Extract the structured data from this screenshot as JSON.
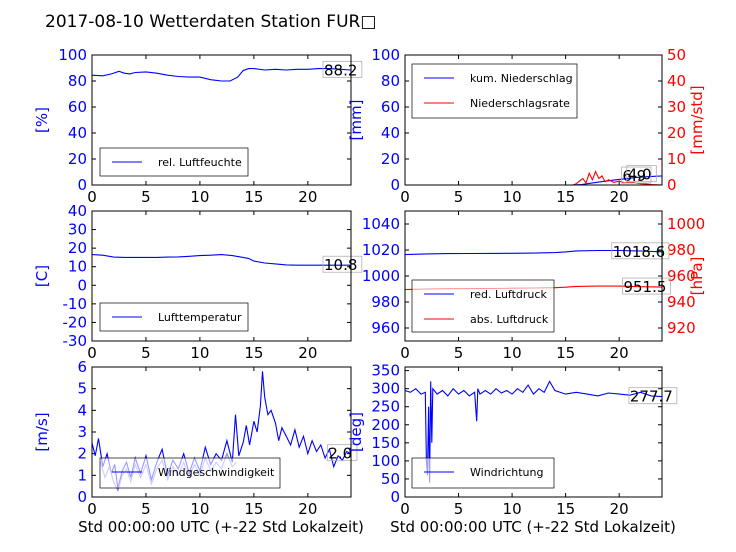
{
  "figure": {
    "title": "2017-08-10 Wetterdaten Station FUR□",
    "xlabel": "Std 00:00:00 UTC (+-22 Std Lokalzeit)"
  },
  "colors": {
    "blue": "#0000ff",
    "red": "#ff0000",
    "black": "#000000"
  },
  "chart_data": [
    {
      "id": "humidity",
      "type": "line",
      "x_ticks": [
        0,
        5,
        10,
        15,
        20
      ],
      "xlim": [
        0,
        24
      ],
      "ylabel": "[%]",
      "ylim": [
        0,
        100
      ],
      "y_ticks": [
        0,
        20,
        40,
        60,
        80,
        100
      ],
      "legend": {
        "placement": "lower-left",
        "entries": [
          "rel. Luftfeuchte"
        ]
      },
      "annotations": [
        {
          "text": "88.2",
          "x": 21.5,
          "y": 88.2
        }
      ],
      "series": [
        {
          "name": "rel. Luftfeuchte",
          "color": "#0000ff",
          "axis": "left",
          "x": [
            0,
            1,
            1.8,
            2.5,
            3,
            3.5,
            4,
            5,
            6,
            7,
            8,
            9,
            10,
            11,
            12,
            12.8,
            13.5,
            14,
            14.5,
            15,
            16,
            17,
            18,
            19,
            20,
            21,
            22,
            23,
            24
          ],
          "y": [
            84.5,
            84,
            85.5,
            87.5,
            86,
            85.5,
            86.5,
            87,
            86,
            84.5,
            83.5,
            83,
            83,
            81,
            80,
            80,
            83,
            88,
            89.5,
            89.5,
            88.5,
            89,
            88.5,
            89,
            89,
            89.5,
            89.5,
            89,
            88.5
          ]
        }
      ]
    },
    {
      "id": "precipitation",
      "type": "line",
      "x_ticks": [
        0,
        5,
        10,
        15,
        20
      ],
      "xlim": [
        0,
        24
      ],
      "ylabel": "[mm]",
      "ylim": [
        0,
        100
      ],
      "y_ticks": [
        0,
        20,
        40,
        60,
        80,
        100
      ],
      "y2label": "[mm/std]",
      "y2lim": [
        0,
        50
      ],
      "y2_ticks": [
        0,
        10,
        20,
        30,
        40,
        50
      ],
      "legend": {
        "placement": "upper-left",
        "entries": [
          "kum. Niederschlag",
          "Niederschlagsrate"
        ]
      },
      "annotations": [
        {
          "text": "6.9",
          "x": 20.3,
          "y": 6.9
        },
        {
          "text": "4.0",
          "x": 20.8,
          "y": 8.0
        }
      ],
      "series": [
        {
          "name": "kum. Niederschlag",
          "color": "#0000ff",
          "axis": "left",
          "x": [
            0,
            15.5,
            16.5,
            17.5,
            18.5,
            19.5,
            20.5,
            21.5,
            22.5,
            23.5,
            24
          ],
          "y": [
            0,
            0,
            0.4,
            1.6,
            2.8,
            3.8,
            4.8,
            5.7,
            6.3,
            6.8,
            6.9
          ]
        },
        {
          "name": "Niederschlagsrate",
          "color": "#ff0000",
          "axis": "right",
          "x": [
            0,
            15.7,
            16.0,
            16.3,
            16.6,
            16.9,
            17.2,
            17.5,
            17.8,
            18.1,
            18.4,
            18.7,
            19.0,
            19.5,
            20.0,
            20.5,
            21.0,
            21.5,
            22,
            22.5,
            23,
            24
          ],
          "y": [
            0,
            0,
            0.5,
            1.5,
            2.5,
            0.8,
            4.5,
            2.0,
            5.2,
            2.5,
            3.5,
            1.2,
            2.0,
            1.0,
            1.5,
            0.8,
            1.2,
            0.8,
            0.5,
            0.4,
            0.2,
            0
          ]
        }
      ]
    },
    {
      "id": "temperature",
      "type": "line",
      "x_ticks": [
        0,
        5,
        10,
        15,
        20
      ],
      "xlim": [
        0,
        24
      ],
      "ylabel": "[C]",
      "ylim": [
        -30,
        40
      ],
      "y_ticks": [
        -30,
        -20,
        -10,
        0,
        10,
        20,
        30,
        40
      ],
      "legend": {
        "placement": "lower-left",
        "entries": [
          "Lufttemperatur"
        ]
      },
      "annotations": [
        {
          "text": "10.8",
          "x": 21.5,
          "y": 10.8
        }
      ],
      "series": [
        {
          "name": "Lufttemperatur",
          "color": "#0000ff",
          "axis": "left",
          "x": [
            0,
            1,
            2,
            3,
            4,
            5,
            6,
            7,
            8,
            9,
            10,
            11,
            12,
            13,
            14,
            14.5,
            15,
            16,
            17,
            18,
            19,
            20,
            21,
            22,
            23,
            24
          ],
          "y": [
            16.5,
            16.2,
            15.2,
            15,
            15,
            15,
            15,
            15.2,
            15.3,
            15.6,
            16,
            16.2,
            16.5,
            16,
            15,
            14.5,
            13,
            12,
            11.5,
            11,
            10.8,
            10.8,
            10.8,
            10.8,
            10.8,
            10.8
          ]
        }
      ]
    },
    {
      "id": "pressure",
      "type": "line",
      "x_ticks": [
        0,
        5,
        10,
        15,
        20
      ],
      "xlim": [
        0,
        24
      ],
      "ylabel": "",
      "ylim": [
        950,
        1050
      ],
      "y_ticks": [
        960,
        980,
        1000,
        1020,
        1040
      ],
      "y2label": "[hPa]",
      "y2lim": [
        910,
        1010
      ],
      "y2_ticks": [
        920,
        940,
        960,
        980,
        1000
      ],
      "legend": {
        "placement": "lower-left",
        "entries": [
          "red. Luftdruck",
          "abs. Luftdruck"
        ]
      },
      "annotations": [
        {
          "text": "1018.6",
          "x": 19.4,
          "y": 1018.6
        },
        {
          "text": "951.5",
          "x": 20.4,
          "y": 991.5
        }
      ],
      "series": [
        {
          "name": "red. Luftdruck",
          "color": "#0000ff",
          "axis": "left",
          "x": [
            0,
            2,
            4,
            6,
            8,
            10,
            12,
            14,
            15,
            16,
            18,
            20,
            22,
            24
          ],
          "y": [
            1016.5,
            1017,
            1017.2,
            1017.3,
            1017.4,
            1017.5,
            1017.6,
            1018,
            1018.5,
            1019.3,
            1019.6,
            1019.6,
            1019.2,
            1018.6
          ]
        },
        {
          "name": "abs. Luftdruck",
          "color": "#ff0000",
          "axis": "right",
          "x": [
            0,
            2,
            4,
            6,
            8,
            10,
            12,
            14,
            15,
            16,
            18,
            20,
            22,
            24
          ],
          "y": [
            949.5,
            950,
            950.2,
            950.3,
            950.4,
            950.6,
            950.8,
            951,
            951.4,
            952,
            952.2,
            952.2,
            951.8,
            951.5
          ]
        }
      ]
    },
    {
      "id": "windspeed",
      "type": "line",
      "x_ticks": [
        0,
        5,
        10,
        15,
        20
      ],
      "xlim": [
        0,
        24
      ],
      "ylabel": "[m/s]",
      "ylim": [
        0,
        6
      ],
      "y_ticks": [
        0,
        1,
        2,
        3,
        4,
        5,
        6
      ],
      "legend": {
        "placement": "lower-left",
        "entries": [
          "Windgeschwindigkeit"
        ]
      },
      "annotations": [
        {
          "text": "2.0",
          "x": 21.9,
          "y": 2.0
        }
      ],
      "series": [
        {
          "name": "Windgeschwindigkeit",
          "color": "#0000ff",
          "axis": "left",
          "x": [
            0,
            0.3,
            0.6,
            1,
            1.4,
            1.8,
            2.1,
            2.4,
            2.8,
            3.2,
            3.6,
            4,
            4.5,
            5,
            5.5,
            6,
            6.5,
            7,
            7.5,
            8,
            8.5,
            9,
            9.5,
            10,
            10.5,
            11,
            11.5,
            12,
            12.5,
            13,
            13.3,
            13.6,
            14,
            14.3,
            14.6,
            15,
            15.3,
            15.6,
            15.8,
            16,
            16.3,
            16.6,
            17,
            17.3,
            17.6,
            18,
            18.4,
            18.8,
            19.2,
            19.6,
            20,
            20.4,
            20.8,
            21.2,
            21.6,
            22,
            22.4,
            22.8,
            23.2,
            23.6,
            24
          ],
          "y": [
            2.5,
            1.9,
            2.7,
            1.4,
            2.0,
            1.1,
            1.5,
            0.4,
            1.2,
            1.6,
            0.9,
            1.8,
            1.1,
            1.9,
            0.8,
            1.6,
            2.2,
            1.0,
            1.7,
            1.3,
            2.0,
            1.1,
            1.8,
            1.2,
            2.3,
            1.5,
            2.0,
            1.7,
            2.6,
            1.6,
            3.8,
            1.9,
            2.5,
            3.3,
            2.4,
            3.5,
            3.0,
            4.2,
            5.8,
            4.6,
            3.8,
            4.0,
            3.4,
            2.6,
            3.2,
            2.8,
            2.4,
            3.1,
            2.3,
            2.8,
            2.0,
            2.6,
            2.1,
            2.4,
            1.8,
            2.2,
            1.4,
            1.9,
            1.7,
            2.1,
            2.0
          ]
        },
        {
          "name": "",
          "color": "#8080ff",
          "axis": "left",
          "x": [
            0.8,
            1.2,
            1.6,
            2.0,
            2.4,
            2.8,
            3.2,
            3.6,
            4,
            4.5,
            5,
            5.5,
            6,
            6.5,
            7,
            7.5,
            8,
            8.5,
            9,
            9.5,
            10,
            10.5,
            11,
            11.5,
            12,
            12.5,
            13,
            13.4
          ],
          "y": [
            1.6,
            0.9,
            1.4,
            0.7,
            0.3,
            1.0,
            1.3,
            0.7,
            1.5,
            0.9,
            1.5,
            0.6,
            1.3,
            1.7,
            0.8,
            1.4,
            1.0,
            1.6,
            0.9,
            1.5,
            1.0,
            1.8,
            1.2,
            1.6,
            1.3,
            2.0,
            1.4,
            1.6
          ]
        }
      ]
    },
    {
      "id": "winddirection",
      "type": "line",
      "x_ticks": [
        0,
        5,
        10,
        15,
        20
      ],
      "xlim": [
        0,
        24
      ],
      "ylabel": "[deg]",
      "ylim": [
        0,
        360
      ],
      "y_ticks": [
        0,
        50,
        100,
        150,
        200,
        250,
        300,
        350
      ],
      "legend": {
        "placement": "lower-left",
        "entries": [
          "Windrichtung"
        ]
      },
      "annotations": [
        {
          "text": "277.7",
          "x": 21.0,
          "y": 277.7
        }
      ],
      "series": [
        {
          "name": "Windrichtung",
          "color": "#0000ff",
          "axis": "left",
          "x": [
            0,
            0.5,
            1,
            1.5,
            1.9,
            2.0,
            2.1,
            2.2,
            2.3,
            2.4,
            2.5,
            2.6,
            3,
            3.5,
            4,
            4.5,
            5,
            5.5,
            6,
            6.5,
            6.7,
            6.8,
            7,
            7.5,
            8,
            8.5,
            9,
            9.5,
            10,
            10.5,
            11,
            11.5,
            12,
            12.5,
            13,
            13.5,
            14,
            15,
            16,
            17,
            18,
            19,
            20,
            21,
            22,
            23,
            24
          ],
          "y": [
            295,
            290,
            300,
            285,
            290,
            100,
            60,
            250,
            40,
            320,
            150,
            300,
            285,
            295,
            280,
            300,
            285,
            295,
            280,
            290,
            210,
            300,
            285,
            295,
            285,
            300,
            288,
            295,
            285,
            300,
            290,
            310,
            285,
            300,
            290,
            320,
            295,
            285,
            290,
            285,
            280,
            288,
            285,
            282,
            290,
            280,
            278
          ]
        }
      ]
    }
  ]
}
